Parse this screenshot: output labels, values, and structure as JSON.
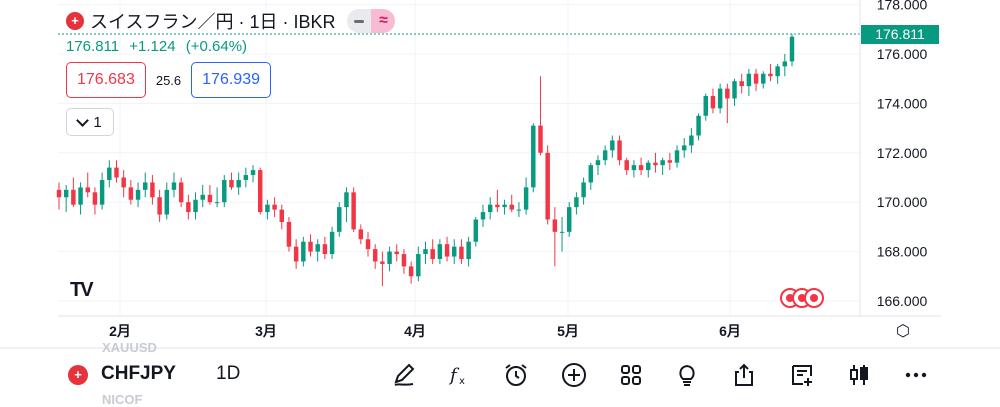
{
  "header": {
    "title": "スイスフラン／円 · 1日 · IBKR",
    "flag_glyph": "+",
    "wave_glyph": "≈"
  },
  "quote": {
    "last": "176.811",
    "change": "+1.124",
    "change_pct": "(+0.64%)"
  },
  "bid_ask": {
    "bid": "176.683",
    "spread": "25.6",
    "ask": "176.939"
  },
  "interval": {
    "label": "1"
  },
  "price_axis": {
    "ticks": [
      "178.000",
      "176.000",
      "174.000",
      "172.000",
      "170.000",
      "168.000",
      "166.000"
    ],
    "last_tag": "176.811"
  },
  "time_axis": {
    "ticks": [
      "2月",
      "3月",
      "4月",
      "5月",
      "6月"
    ]
  },
  "logo_text": "TV",
  "toolbar": {
    "symbol": "CHFJPY",
    "timeframe": "1D",
    "ghost_top": "XAUUSD",
    "ghost_bottom": "NICOF",
    "tools": [
      "pencil-icon",
      "formula-icon",
      "alarm-icon",
      "add-icon",
      "grid-icon",
      "bulb-icon",
      "share-icon",
      "notes-icon",
      "candles-icon",
      "more-icon"
    ]
  },
  "colors": {
    "up": "#089981",
    "down": "#f23645",
    "accent": "#2962ff",
    "wave": "#d81b60"
  },
  "chart_data": {
    "type": "candlestick",
    "title": "スイスフラン／円 · 1日 · IBKR",
    "ylim": [
      165.5,
      178.4
    ],
    "ticks": [
      178,
      176,
      174,
      172,
      170,
      168,
      166
    ],
    "candles": [
      {
        "o": 170.5,
        "h": 170.8,
        "l": 169.7,
        "c": 170.2
      },
      {
        "o": 170.2,
        "h": 170.7,
        "l": 169.6,
        "c": 170.5
      },
      {
        "o": 170.5,
        "h": 171.0,
        "l": 169.8,
        "c": 169.9
      },
      {
        "o": 169.9,
        "h": 170.8,
        "l": 169.5,
        "c": 170.6
      },
      {
        "o": 170.6,
        "h": 171.2,
        "l": 170.2,
        "c": 170.4
      },
      {
        "o": 170.4,
        "h": 170.6,
        "l": 169.5,
        "c": 169.9
      },
      {
        "o": 169.9,
        "h": 171.2,
        "l": 169.7,
        "c": 170.9
      },
      {
        "o": 170.9,
        "h": 171.7,
        "l": 170.6,
        "c": 171.4
      },
      {
        "o": 171.4,
        "h": 171.7,
        "l": 170.8,
        "c": 171.0
      },
      {
        "o": 171.0,
        "h": 171.3,
        "l": 170.2,
        "c": 170.6
      },
      {
        "o": 170.6,
        "h": 170.9,
        "l": 169.9,
        "c": 170.1
      },
      {
        "o": 170.1,
        "h": 170.8,
        "l": 169.8,
        "c": 170.5
      },
      {
        "o": 170.5,
        "h": 171.2,
        "l": 170.2,
        "c": 170.8
      },
      {
        "o": 170.8,
        "h": 171.1,
        "l": 169.9,
        "c": 170.2
      },
      {
        "o": 170.2,
        "h": 170.5,
        "l": 169.2,
        "c": 169.5
      },
      {
        "o": 169.5,
        "h": 170.8,
        "l": 169.3,
        "c": 170.5
      },
      {
        "o": 170.5,
        "h": 171.2,
        "l": 170.2,
        "c": 170.8
      },
      {
        "o": 170.8,
        "h": 171.0,
        "l": 169.8,
        "c": 170.0
      },
      {
        "o": 170.0,
        "h": 170.3,
        "l": 169.3,
        "c": 169.6
      },
      {
        "o": 169.6,
        "h": 170.4,
        "l": 169.3,
        "c": 170.1
      },
      {
        "o": 170.1,
        "h": 170.7,
        "l": 169.8,
        "c": 170.3
      },
      {
        "o": 170.3,
        "h": 170.7,
        "l": 169.9,
        "c": 170.0
      },
      {
        "o": 170.0,
        "h": 170.6,
        "l": 169.8,
        "c": 170.0
      },
      {
        "o": 170.0,
        "h": 171.1,
        "l": 169.8,
        "c": 170.9
      },
      {
        "o": 170.9,
        "h": 171.2,
        "l": 170.5,
        "c": 170.6
      },
      {
        "o": 170.6,
        "h": 171.2,
        "l": 170.3,
        "c": 170.9
      },
      {
        "o": 170.9,
        "h": 171.4,
        "l": 170.6,
        "c": 171.1
      },
      {
        "o": 171.1,
        "h": 171.5,
        "l": 170.8,
        "c": 171.3
      },
      {
        "o": 171.3,
        "h": 171.4,
        "l": 169.5,
        "c": 169.6
      },
      {
        "o": 169.6,
        "h": 170.1,
        "l": 169.3,
        "c": 169.9
      },
      {
        "o": 169.9,
        "h": 170.2,
        "l": 169.4,
        "c": 169.7
      },
      {
        "o": 169.7,
        "h": 169.9,
        "l": 168.9,
        "c": 169.2
      },
      {
        "o": 169.2,
        "h": 169.4,
        "l": 168.0,
        "c": 168.2
      },
      {
        "o": 168.2,
        "h": 168.5,
        "l": 167.3,
        "c": 167.6
      },
      {
        "o": 167.6,
        "h": 168.6,
        "l": 167.4,
        "c": 168.4
      },
      {
        "o": 168.4,
        "h": 168.7,
        "l": 167.8,
        "c": 168.0
      },
      {
        "o": 168.0,
        "h": 168.5,
        "l": 167.6,
        "c": 168.3
      },
      {
        "o": 168.3,
        "h": 168.6,
        "l": 167.7,
        "c": 167.9
      },
      {
        "o": 167.9,
        "h": 169.0,
        "l": 167.7,
        "c": 168.8
      },
      {
        "o": 168.8,
        "h": 170.0,
        "l": 168.6,
        "c": 169.8
      },
      {
        "o": 169.8,
        "h": 170.6,
        "l": 169.2,
        "c": 170.4
      },
      {
        "o": 170.4,
        "h": 170.6,
        "l": 168.8,
        "c": 168.9
      },
      {
        "o": 168.9,
        "h": 169.1,
        "l": 168.3,
        "c": 168.5
      },
      {
        "o": 168.5,
        "h": 168.8,
        "l": 167.8,
        "c": 168.1
      },
      {
        "o": 168.1,
        "h": 168.3,
        "l": 167.3,
        "c": 167.6
      },
      {
        "o": 167.6,
        "h": 168.0,
        "l": 166.6,
        "c": 167.5
      },
      {
        "o": 167.5,
        "h": 168.2,
        "l": 167.2,
        "c": 168.0
      },
      {
        "o": 168.0,
        "h": 168.3,
        "l": 167.6,
        "c": 167.9
      },
      {
        "o": 167.9,
        "h": 168.1,
        "l": 167.1,
        "c": 167.4
      },
      {
        "o": 167.4,
        "h": 167.6,
        "l": 166.7,
        "c": 167.0
      },
      {
        "o": 167.0,
        "h": 168.2,
        "l": 166.8,
        "c": 167.9
      },
      {
        "o": 167.9,
        "h": 168.4,
        "l": 167.5,
        "c": 168.1
      },
      {
        "o": 168.1,
        "h": 168.5,
        "l": 167.5,
        "c": 167.7
      },
      {
        "o": 167.7,
        "h": 168.5,
        "l": 167.5,
        "c": 168.3
      },
      {
        "o": 168.3,
        "h": 168.6,
        "l": 167.6,
        "c": 167.8
      },
      {
        "o": 167.8,
        "h": 168.5,
        "l": 167.5,
        "c": 168.2
      },
      {
        "o": 168.2,
        "h": 168.5,
        "l": 167.5,
        "c": 167.7
      },
      {
        "o": 167.7,
        "h": 168.6,
        "l": 167.4,
        "c": 168.4
      },
      {
        "o": 168.4,
        "h": 169.4,
        "l": 168.2,
        "c": 169.3
      },
      {
        "o": 169.3,
        "h": 169.9,
        "l": 169.0,
        "c": 169.6
      },
      {
        "o": 169.6,
        "h": 170.2,
        "l": 169.3,
        "c": 169.9
      },
      {
        "o": 169.9,
        "h": 170.5,
        "l": 169.6,
        "c": 169.8
      },
      {
        "o": 169.8,
        "h": 170.1,
        "l": 169.5,
        "c": 169.9
      },
      {
        "o": 169.9,
        "h": 170.3,
        "l": 169.6,
        "c": 169.7
      },
      {
        "o": 169.7,
        "h": 170.0,
        "l": 169.4,
        "c": 169.7
      },
      {
        "o": 169.7,
        "h": 171.0,
        "l": 169.5,
        "c": 170.6
      },
      {
        "o": 170.6,
        "h": 173.2,
        "l": 170.4,
        "c": 173.1
      },
      {
        "o": 173.1,
        "h": 175.1,
        "l": 171.9,
        "c": 172.0
      },
      {
        "o": 172.0,
        "h": 172.3,
        "l": 169.1,
        "c": 169.3
      },
      {
        "o": 169.3,
        "h": 169.8,
        "l": 167.4,
        "c": 168.8
      },
      {
        "o": 168.8,
        "h": 169.4,
        "l": 168.0,
        "c": 168.8
      },
      {
        "o": 168.8,
        "h": 170.0,
        "l": 168.6,
        "c": 169.8
      },
      {
        "o": 169.8,
        "h": 170.4,
        "l": 169.5,
        "c": 170.2
      },
      {
        "o": 170.2,
        "h": 171.0,
        "l": 169.9,
        "c": 170.8
      },
      {
        "o": 170.8,
        "h": 171.6,
        "l": 170.5,
        "c": 171.5
      },
      {
        "o": 171.5,
        "h": 171.9,
        "l": 171.1,
        "c": 171.7
      },
      {
        "o": 171.7,
        "h": 172.3,
        "l": 171.5,
        "c": 172.1
      },
      {
        "o": 172.1,
        "h": 172.7,
        "l": 171.8,
        "c": 172.5
      },
      {
        "o": 172.5,
        "h": 172.7,
        "l": 171.5,
        "c": 171.7
      },
      {
        "o": 171.7,
        "h": 171.8,
        "l": 171.1,
        "c": 171.3
      },
      {
        "o": 171.3,
        "h": 171.7,
        "l": 171.0,
        "c": 171.5
      },
      {
        "o": 171.5,
        "h": 171.8,
        "l": 171.1,
        "c": 171.3
      },
      {
        "o": 171.3,
        "h": 171.7,
        "l": 171.0,
        "c": 171.6
      },
      {
        "o": 171.6,
        "h": 172.0,
        "l": 171.2,
        "c": 171.5
      },
      {
        "o": 171.5,
        "h": 171.8,
        "l": 171.1,
        "c": 171.7
      },
      {
        "o": 171.7,
        "h": 172.0,
        "l": 171.3,
        "c": 171.6
      },
      {
        "o": 171.6,
        "h": 172.3,
        "l": 171.4,
        "c": 172.1
      },
      {
        "o": 172.1,
        "h": 172.6,
        "l": 171.8,
        "c": 172.3
      },
      {
        "o": 172.3,
        "h": 173.0,
        "l": 172.0,
        "c": 172.7
      },
      {
        "o": 172.7,
        "h": 173.6,
        "l": 172.5,
        "c": 173.5
      },
      {
        "o": 173.5,
        "h": 174.4,
        "l": 173.3,
        "c": 174.3
      },
      {
        "o": 174.3,
        "h": 174.6,
        "l": 173.6,
        "c": 173.8
      },
      {
        "o": 173.8,
        "h": 174.8,
        "l": 173.6,
        "c": 174.6
      },
      {
        "o": 174.6,
        "h": 174.8,
        "l": 173.2,
        "c": 174.2
      },
      {
        "o": 174.2,
        "h": 175.0,
        "l": 173.9,
        "c": 174.9
      },
      {
        "o": 174.9,
        "h": 175.2,
        "l": 174.4,
        "c": 174.7
      },
      {
        "o": 174.7,
        "h": 175.4,
        "l": 174.3,
        "c": 175.2
      },
      {
        "o": 175.2,
        "h": 175.4,
        "l": 174.5,
        "c": 174.8
      },
      {
        "o": 174.8,
        "h": 175.3,
        "l": 174.6,
        "c": 175.2
      },
      {
        "o": 175.2,
        "h": 175.6,
        "l": 174.9,
        "c": 175.1
      },
      {
        "o": 175.1,
        "h": 175.6,
        "l": 174.8,
        "c": 175.5
      },
      {
        "o": 175.5,
        "h": 176.0,
        "l": 175.1,
        "c": 175.7
      },
      {
        "o": 175.7,
        "h": 176.8,
        "l": 175.5,
        "c": 176.7
      }
    ]
  }
}
